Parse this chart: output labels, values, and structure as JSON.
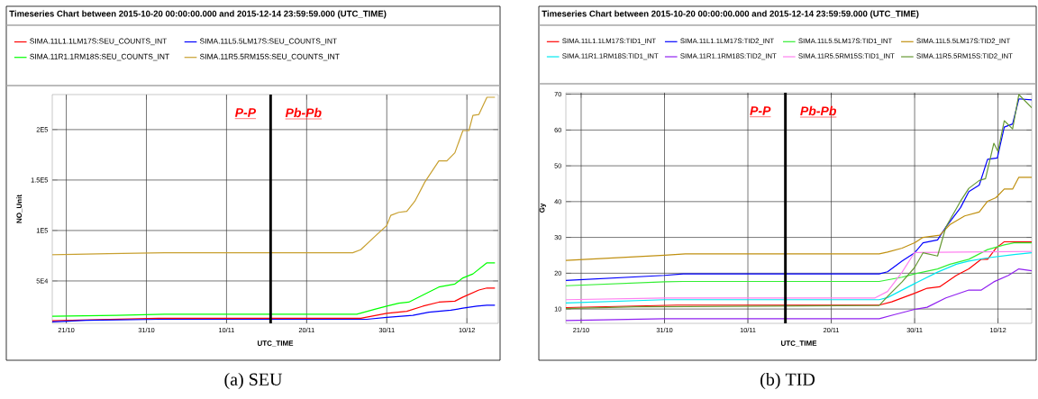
{
  "chart_data": [
    {
      "type": "line",
      "title": "Timeseries Chart between 2015-10-20 00:00:00.000 and 2015-12-14 23:59:59.000 (UTC_TIME)",
      "xlabel": "UTC_TIME",
      "ylabel": "NO_Unit",
      "xlim": [
        "2015-10-19T06:00",
        "2015-12-13T22:00"
      ],
      "ylim": [
        8000,
        234700
      ],
      "xticks": [
        {
          "value": "2015-10-21",
          "label": "21/10"
        },
        {
          "value": "2015-10-31",
          "label": "31/10"
        },
        {
          "value": "2015-11-10",
          "label": "10/11"
        },
        {
          "value": "2015-11-20",
          "label": "20/11"
        },
        {
          "value": "2015-11-30",
          "label": "30/11"
        },
        {
          "value": "2015-12-10",
          "label": "10/12"
        }
      ],
      "yticks": [
        {
          "value": 50000,
          "label": "5E4"
        },
        {
          "value": 100000,
          "label": "1E5"
        },
        {
          "value": 150000,
          "label": "1.5E5"
        },
        {
          "value": 200000,
          "label": "2E5"
        }
      ],
      "grid": true,
      "legend": "top",
      "ref_lines": [
        {
          "axis": "x",
          "value": "2015-11-15T12:00",
          "color": "#000000"
        }
      ],
      "annotations": [
        "P-P",
        "Pb-Pb",
        "(a) SEU"
      ],
      "series": [
        {
          "name": "SIMA.11L1.1LM17S:SEU_COUNTS_INT",
          "color": "#ff0000",
          "x": [
            "2015-10-19T06:00",
            "2015-11-01T12:00",
            "2015-11-26T18:00",
            "2015-11-30T00:00",
            "2015-12-02T12:00",
            "2015-12-04T12:00",
            "2015-12-06T12:00",
            "2015-12-08T12:00",
            "2015-12-09T12:00",
            "2015-12-11T12:00",
            "2015-12-12T12:00",
            "2015-12-13T12:00"
          ],
          "values": [
            10500,
            13000,
            13000,
            18000,
            20000,
            25000,
            29000,
            30000,
            34000,
            41000,
            43000,
            43000
          ]
        },
        {
          "name": "SIMA.11L5.5LM17S:SEU_COUNTS_INT",
          "color": "#0000ff",
          "x": [
            "2015-10-19T06:00",
            "2015-10-23T12:00",
            "2015-11-01T18:00",
            "2015-11-27T12:00",
            "2015-11-30T00:00",
            "2015-12-03T06:00",
            "2015-12-05T06:00",
            "2015-12-08T00:00",
            "2015-12-09T12:00",
            "2015-12-11T06:00",
            "2015-12-12T12:00",
            "2015-12-13T12:00"
          ],
          "values": [
            9500,
            11000,
            12000,
            12000,
            14000,
            16000,
            19000,
            21000,
            23000,
            25000,
            26000,
            26000
          ]
        },
        {
          "name": "SIMA.11R1.1RM18S:SEU_COUNTS_INT",
          "color": "#00ff00",
          "x": [
            "2015-10-19T06:00",
            "2015-10-27T06:00",
            "2015-11-02T06:00",
            "2015-11-26T06:00",
            "2015-11-28T12:00",
            "2015-11-30T00:00",
            "2015-12-01T12:00",
            "2015-12-02T18:00",
            "2015-12-04T18:00",
            "2015-12-06T12:00",
            "2015-12-08T12:00",
            "2015-12-09T12:00",
            "2015-12-10T18:00",
            "2015-12-12T12:00",
            "2015-12-13T12:00"
          ],
          "values": [
            15000,
            16000,
            17000,
            17000,
            22000,
            25000,
            28000,
            29000,
            37000,
            44000,
            47000,
            53000,
            57000,
            68000,
            68000
          ]
        },
        {
          "name": "SIMA.11R5.5RM15S:SEU_COUNTS_INT",
          "color": "#c8a030",
          "x": [
            "2015-10-19T06:00",
            "2015-10-26T06:00",
            "2015-11-02T06:00",
            "2015-11-25T18:00",
            "2015-11-26T18:00",
            "2015-11-28T12:00",
            "2015-11-30T00:00",
            "2015-11-30T12:00",
            "2015-12-01T12:00",
            "2015-12-02T12:00",
            "2015-12-03T12:00",
            "2015-12-04T18:00",
            "2015-12-06T12:00",
            "2015-12-07T12:00",
            "2015-12-08T12:00",
            "2015-12-09T12:00",
            "2015-12-10T06:00",
            "2015-12-10T18:00",
            "2015-12-11T12:00",
            "2015-12-12T12:00",
            "2015-12-13T12:00"
          ],
          "values": [
            76000,
            77000,
            78000,
            78000,
            81000,
            94000,
            105000,
            115000,
            118000,
            119000,
            129000,
            148000,
            169000,
            169000,
            177000,
            199000,
            199000,
            214000,
            215000,
            232000,
            232000
          ]
        }
      ]
    },
    {
      "type": "line",
      "title": "Timeseries Chart between 2015-10-20 00:00:00.000 and 2015-12-14 23:59:59.000 (UTC_TIME)",
      "xlabel": "UTC_TIME",
      "ylabel": "Gy",
      "xlim": [
        "2015-10-19T04:00",
        "2015-12-14T01:00"
      ],
      "ylim": [
        6,
        70.4
      ],
      "xticks": [
        {
          "value": "2015-10-21",
          "label": "21/10"
        },
        {
          "value": "2015-10-31",
          "label": "31/10"
        },
        {
          "value": "2015-11-10",
          "label": "10/11"
        },
        {
          "value": "2015-11-20",
          "label": "20/11"
        },
        {
          "value": "2015-11-30",
          "label": "30/11"
        },
        {
          "value": "2015-12-10",
          "label": "10/12"
        }
      ],
      "yticks": [
        10,
        20,
        30,
        40,
        50,
        60,
        70
      ],
      "grid": true,
      "legend": "top",
      "ref_lines": [
        {
          "axis": "x",
          "value": "2015-11-14T12:00",
          "color": "#000000"
        }
      ],
      "annotations": [
        "P-P",
        "Pb-Pb",
        "(b) TID"
      ],
      "series": [
        {
          "name": "SIMA.11L1.1LM17S:TID1_INT",
          "color": "#ff0000",
          "x": [
            "2015-10-19T04:00",
            "2015-11-01T12:00",
            "2015-11-25T18:00",
            "2015-11-27T06:00",
            "2015-11-30T00:00",
            "2015-12-01T12:00",
            "2015-12-03T00:00",
            "2015-12-05T00:00",
            "2015-12-06T12:00",
            "2015-12-08T00:00",
            "2015-12-08T18:00",
            "2015-12-09T18:00",
            "2015-12-10T18:00",
            "2015-12-14T01:00"
          ],
          "values": [
            10.4,
            11.1,
            11.1,
            12.0,
            14.4,
            15.8,
            16.2,
            19.4,
            21.2,
            23.9,
            23.9,
            27.0,
            28.8,
            28.8
          ]
        },
        {
          "name": "SIMA.11L1.1LM17S:TID2_INT",
          "color": "#0000ff",
          "x": [
            "2015-10-19T04:00",
            "2015-10-31T00:00",
            "2015-11-02T06:00",
            "2015-11-25T18:00",
            "2015-11-26T18:00",
            "2015-11-28T12:00",
            "2015-11-30T00:00",
            "2015-12-01T00:00",
            "2015-12-02T18:00",
            "2015-12-03T18:00",
            "2015-12-05T12:00",
            "2015-12-06T12:00",
            "2015-12-07T18:00",
            "2015-12-08T18:00",
            "2015-12-09T22:00",
            "2015-12-10T18:00",
            "2015-12-11T18:00",
            "2015-12-12T12:00",
            "2015-12-14T01:00"
          ],
          "values": [
            18.0,
            19.4,
            19.8,
            19.8,
            20.4,
            23.4,
            25.7,
            28.5,
            29.3,
            32.9,
            38.3,
            42.8,
            44.6,
            51.8,
            52.2,
            60.8,
            61.7,
            68.7,
            68.4
          ]
        },
        {
          "name": "SIMA.11L5.5LM17S:TID1_INT",
          "color": "#33ee33",
          "x": [
            "2015-10-19T04:00",
            "2015-10-31T00:00",
            "2015-11-02T06:00",
            "2015-11-25T18:00",
            "2015-11-28T12:00",
            "2015-11-30T00:00",
            "2015-12-02T18:00",
            "2015-12-04T06:00",
            "2015-12-06T12:00",
            "2015-12-08T18:00",
            "2015-12-10T18:00",
            "2015-12-11T22:00",
            "2015-12-14T01:00"
          ],
          "values": [
            16.5,
            17.6,
            17.7,
            17.7,
            18.9,
            19.8,
            21.2,
            22.5,
            23.9,
            26.6,
            27.9,
            28.5,
            28.5
          ]
        },
        {
          "name": "SIMA.11L5.5LM17S:TID2_INT",
          "color": "#c09010",
          "x": [
            "2015-10-19T04:00",
            "2015-10-31T00:00",
            "2015-11-02T12:00",
            "2015-11-25T18:00",
            "2015-11-26T18:00",
            "2015-11-28T12:00",
            "2015-11-30T00:00",
            "2015-12-01T00:00",
            "2015-12-03T00:00",
            "2015-12-04T06:00",
            "2015-12-06T00:00",
            "2015-12-07T18:00",
            "2015-12-08T18:00",
            "2015-12-09T18:00",
            "2015-12-10T18:00",
            "2015-12-11T18:00",
            "2015-12-12T12:00",
            "2015-12-14T01:00"
          ],
          "values": [
            23.6,
            25.0,
            25.4,
            25.4,
            25.9,
            27.0,
            28.5,
            30.0,
            30.6,
            33.6,
            36.0,
            37.1,
            40.1,
            41.1,
            43.5,
            43.5,
            46.8,
            46.8
          ]
        },
        {
          "name": "SIMA.11R1.1RM18S:TID1_INT",
          "color": "#00e8f0",
          "x": [
            "2015-10-19T04:00",
            "2015-10-31T00:00",
            "2015-11-25T18:00",
            "2015-11-26T18:00",
            "2015-11-30T00:00",
            "2015-12-02T18:00",
            "2015-12-05T00:00",
            "2015-12-06T12:00",
            "2015-12-08T18:00",
            "2015-12-11T22:00",
            "2015-12-14T01:00"
          ],
          "values": [
            11.7,
            12.6,
            12.6,
            13.2,
            17.1,
            20.3,
            22.5,
            23.4,
            24.3,
            25.2,
            25.7
          ]
        },
        {
          "name": "SIMA.11R1.1RM18S:TID2_INT",
          "color": "#9020f0",
          "x": [
            "2015-10-19T04:00",
            "2015-10-31T00:00",
            "2015-11-25T18:00",
            "2015-11-27T12:00",
            "2015-11-30T00:00",
            "2015-12-01T12:00",
            "2015-12-03T18:00",
            "2015-12-06T12:00",
            "2015-12-08T00:00",
            "2015-12-09T12:00",
            "2015-12-11T06:00",
            "2015-12-12T12:00",
            "2015-12-14T01:00"
          ],
          "values": [
            6.8,
            7.3,
            7.3,
            8.4,
            9.9,
            10.5,
            13.1,
            15.3,
            15.3,
            17.6,
            19.4,
            21.2,
            20.7
          ]
        },
        {
          "name": "SIMA.11R5.5RM15S:TID1_INT",
          "color": "#ff80f0",
          "x": [
            "2015-10-19T04:00",
            "2015-10-31T00:00",
            "2015-11-25T06:00",
            "2015-11-26T18:00",
            "2015-11-28T12:00",
            "2015-11-30T00:00",
            "2015-12-14T01:00"
          ],
          "values": [
            12.6,
            13.1,
            13.1,
            14.9,
            20.3,
            25.8,
            26.1
          ]
        },
        {
          "name": "SIMA.11R5.5RM15S:TID2_INT",
          "color": "#669933",
          "x": [
            "2015-10-19T04:00",
            "2015-10-27T12:00",
            "2015-11-25T18:00",
            "2015-11-26T18:00",
            "2015-11-28T12:00",
            "2015-11-30T00:00",
            "2015-12-01T00:00",
            "2015-12-02T18:00",
            "2015-12-03T18:00",
            "2015-12-05T12:00",
            "2015-12-06T12:00",
            "2015-12-07T18:00",
            "2015-12-08T12:00",
            "2015-12-09T12:00",
            "2015-12-10T00:00",
            "2015-12-10T18:00",
            "2015-12-11T18:00",
            "2015-12-12T12:00",
            "2015-12-14T01:00"
          ],
          "values": [
            10.1,
            10.6,
            11.0,
            13.5,
            17.6,
            21.6,
            25.7,
            24.8,
            32.9,
            40.1,
            43.7,
            45.9,
            46.4,
            56.3,
            54.0,
            62.6,
            60.3,
            69.9,
            66.2
          ]
        }
      ]
    }
  ]
}
